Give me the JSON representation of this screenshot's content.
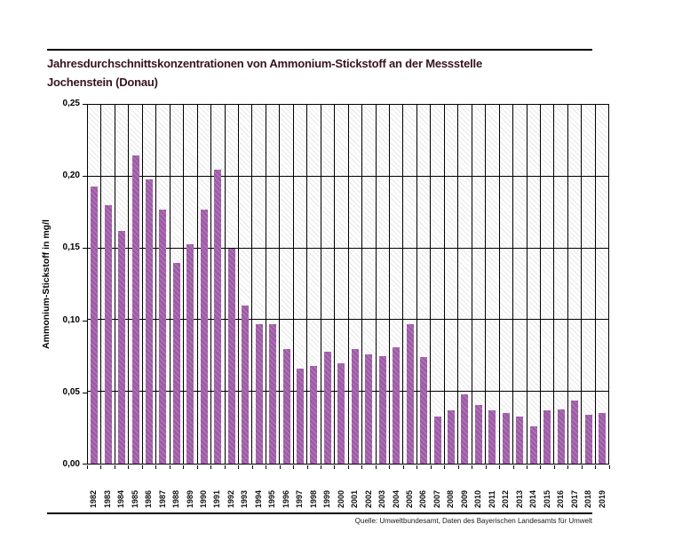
{
  "page": {
    "title_line1": "Jahresdurchschnittskonzentrationen von Ammonium-Stickstoff an der Messstelle",
    "title_line2": "Jochenstein (Donau)",
    "source": "Quelle: Umweltbundesamt, Daten des Bayerischen Landesamts für Umwelt"
  },
  "chart_data": {
    "type": "bar",
    "title": "Jahresdurchschnittskonzentrationen von Ammonium-Stickstoff an der Messstelle Jochenstein (Donau)",
    "xlabel": "",
    "ylabel": "Ammonium-Stickstoff in mg/l",
    "ylim": [
      0,
      0.25
    ],
    "ytick_step": 0.05,
    "ytick_labels_top_down": [
      "0,25",
      "0,20",
      "0,15",
      "0,10",
      "0,05",
      "0,00"
    ],
    "grid": true,
    "legend": "none",
    "colors": {
      "bar": "#9e5ba6",
      "gridline": "#000000",
      "title": "#35131f",
      "hatch": "#e3e3e3"
    },
    "categories": [
      "1982",
      "1983",
      "1984",
      "1985",
      "1986",
      "1987",
      "1988",
      "1989",
      "1990",
      "1991",
      "1992",
      "1993",
      "1994",
      "1995",
      "1996",
      "1997",
      "1998",
      "1999",
      "2000",
      "2001",
      "2002",
      "2003",
      "2004",
      "2005",
      "2006",
      "2007",
      "2008",
      "2009",
      "2010",
      "2011",
      "2012",
      "2013",
      "2014",
      "2015",
      "2016",
      "2017",
      "2018",
      "2019"
    ],
    "values": [
      0.193,
      0.18,
      0.162,
      0.215,
      0.198,
      0.177,
      0.14,
      0.153,
      0.177,
      0.205,
      0.15,
      0.11,
      0.097,
      0.097,
      0.08,
      0.066,
      0.068,
      0.078,
      0.07,
      0.08,
      0.076,
      0.075,
      0.081,
      0.097,
      0.074,
      0.033,
      0.037,
      0.048,
      0.041,
      0.037,
      0.035,
      0.033,
      0.026,
      0.037,
      0.038,
      0.044,
      0.034,
      0.035
    ]
  }
}
